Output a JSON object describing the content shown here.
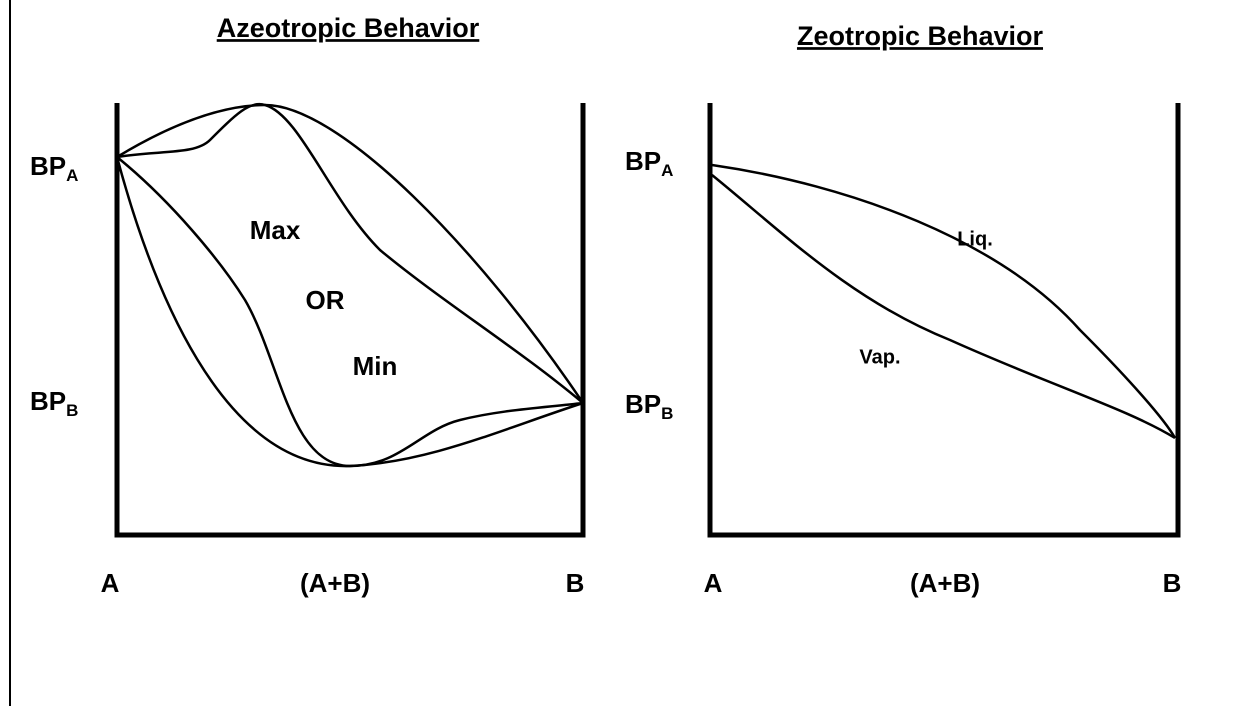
{
  "panels": [
    {
      "title": "Azeotropic Behavior",
      "y_labels": [
        {
          "main": "BP",
          "sub": "A"
        },
        {
          "main": "BP",
          "sub": "B"
        }
      ],
      "x_labels": [
        "A",
        "(A+B)",
        "B"
      ],
      "annotations": [
        "Max",
        "OR",
        "Min"
      ]
    },
    {
      "title": "Zeotropic Behavior",
      "y_labels": [
        {
          "main": "BP",
          "sub": "A"
        },
        {
          "main": "BP",
          "sub": "B"
        }
      ],
      "x_labels": [
        "A",
        "(A+B)",
        "B"
      ],
      "annotations": [
        "Liq.",
        "Vap."
      ]
    }
  ]
}
